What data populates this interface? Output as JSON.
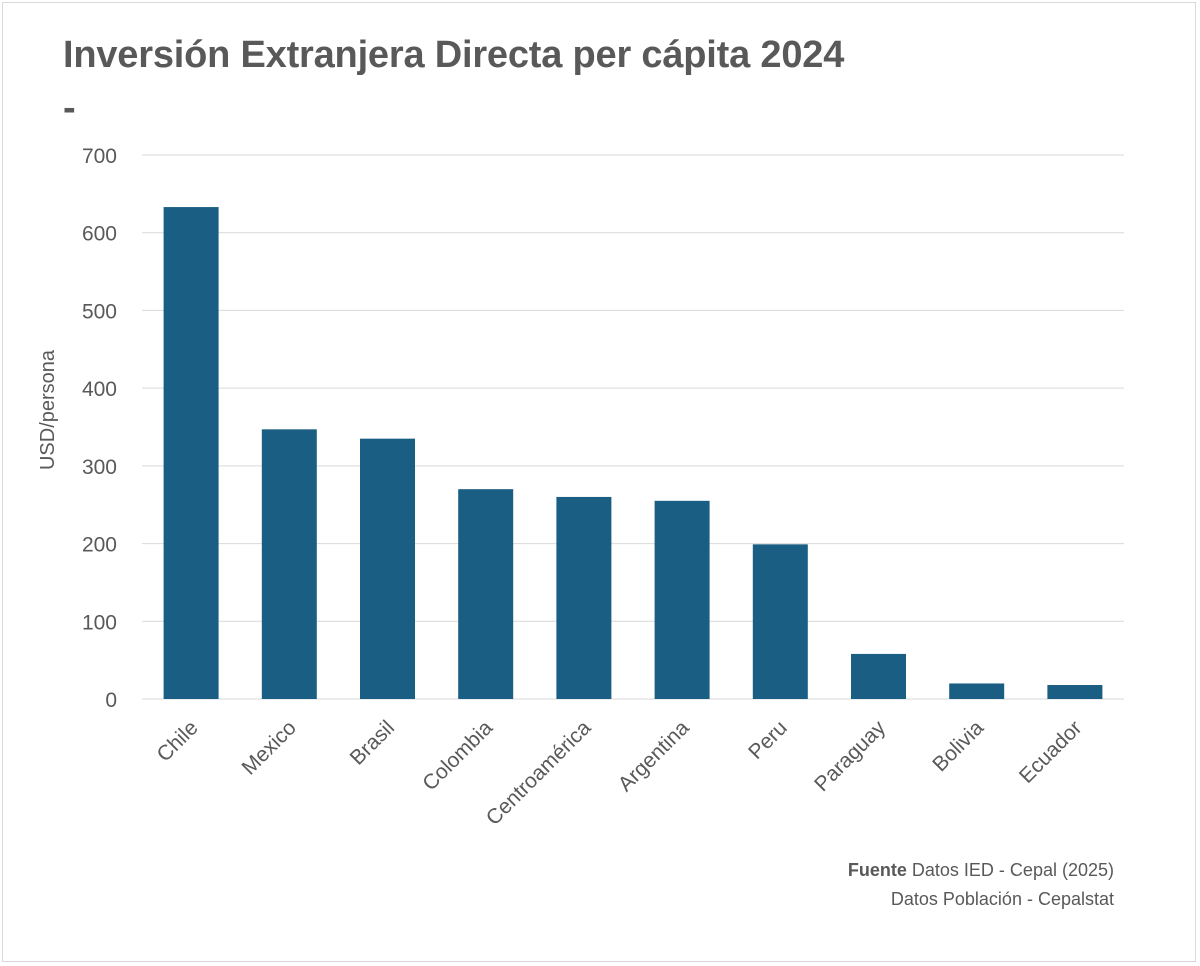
{
  "title": "Inversión Extranjera Directa per cápita 2024",
  "subtitle": "-",
  "source": {
    "label": "Fuente",
    "line1": "Datos IED - Cepal (2025)",
    "line2": "Datos Población - Cepalstat"
  },
  "colors": {
    "bar": "#1a5e83",
    "grid": "#d9d9d9",
    "text": "#595959"
  },
  "chart_data": {
    "type": "bar",
    "title": "Inversión Extranjera Directa per cápita 2024",
    "xlabel": "",
    "ylabel": "USD/persona",
    "ylim": [
      0,
      700
    ],
    "yticks": [
      0,
      100,
      200,
      300,
      400,
      500,
      600,
      700
    ],
    "grid": true,
    "legend": "none",
    "categories": [
      "Chile",
      "Mexico",
      "Brasil",
      "Colombia",
      "Centroamérica",
      "Argentina",
      "Peru",
      "Paraguay",
      "Bolivia",
      "Ecuador"
    ],
    "values": [
      633,
      347,
      335,
      270,
      260,
      255,
      199,
      58,
      20,
      18
    ]
  }
}
